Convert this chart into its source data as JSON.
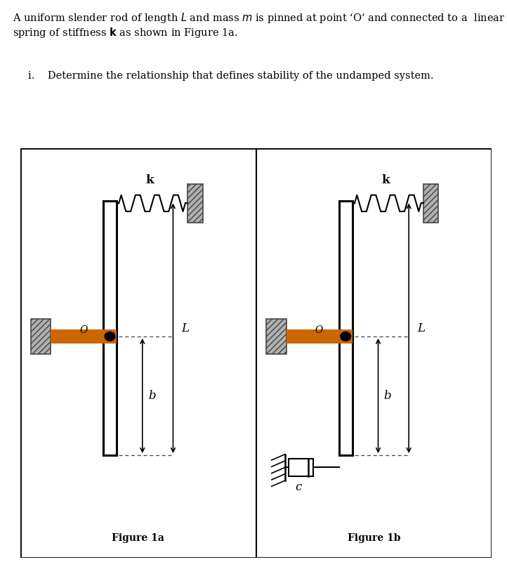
{
  "fig_label_a": "Figure 1a",
  "fig_label_b": "Figure 1b",
  "k_label": "k",
  "L_label": "L",
  "b_label": "b",
  "O_label": "O",
  "c_label": "c",
  "background_color": "#ffffff",
  "rod_color": "#d2691e",
  "wall_facecolor": "#aaaaaa",
  "pin_color": "#000000",
  "text_line1": "A uniform slender rod of length $L$ and mass $m$ is pinned at point ‘O’ and connected to a  linear",
  "text_line2": "spring of stiffness $\\mathbf{k}$ as shown in Figure 1a.",
  "text_line3": "i.    Determine the relationship that defines stability of the undamped system."
}
